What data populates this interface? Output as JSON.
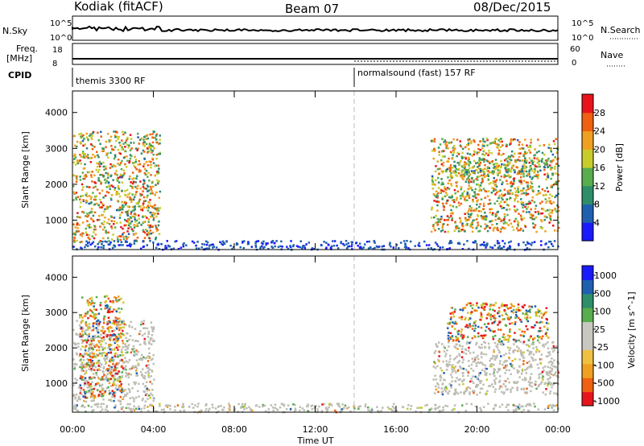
{
  "header": {
    "station": "Kodiak (fitACF)",
    "beam": "Beam 07",
    "date": "08/Dec/2015"
  },
  "top_panels": {
    "nsky_label": "N.Sky",
    "nsky_ticks": [
      "10^5",
      "10^0"
    ],
    "nsearch_label": "N.Search",
    "nsearch_ticks": [
      "10^5",
      "10^0"
    ],
    "freq_label_1": "Freq.",
    "freq_label_2": "[MHz]",
    "freq_ticks": [
      "18",
      "8"
    ],
    "nave_label": "Nave",
    "nave_ticks": [
      "60",
      "0"
    ],
    "cpid_label": "CPID",
    "cpid_segments": [
      {
        "name": "themis 3300 RF",
        "start_hour": 0,
        "end_hour": 14
      },
      {
        "name": "normalsound (fast) 157 RF",
        "start_hour": 14,
        "end_hour": 24
      }
    ]
  },
  "chart_data": [
    {
      "type": "heatmap",
      "quantity": "Power",
      "xlabel": "Time UT",
      "ylabel": "Slant Range [km]",
      "xlim": [
        0,
        24
      ],
      "ylim": [
        180,
        4600
      ],
      "xticks": [
        "00:00",
        "04:00",
        "08:00",
        "12:00",
        "16:00",
        "20:00",
        "00:00"
      ],
      "yticks": [
        1000,
        2000,
        3000,
        4000
      ],
      "colorbar": {
        "label": "Power [dB]",
        "range": [
          0,
          32
        ],
        "ticks": [
          "4",
          "8",
          "12",
          "16",
          "20",
          "24",
          "28"
        ]
      },
      "mode_change_hour": 14,
      "echo_regions": [
        {
          "name": "morning-flare",
          "t_start": 0.0,
          "t_end": 4.3,
          "range_min_km": 400,
          "range_max_km": 3500,
          "peak_power_db": 30
        },
        {
          "name": "ground-scatter-band",
          "t_start": 0.0,
          "t_end": 24.0,
          "range_min_km": 200,
          "range_max_km": 450,
          "peak_power_db": 8
        },
        {
          "name": "evening-arc-lower",
          "t_start": 17.7,
          "t_end": 24.0,
          "range_min_km": 700,
          "range_max_km": 3300,
          "peak_power_db": 30
        },
        {
          "name": "evening-arc-upper",
          "t_start": 18.5,
          "t_end": 23.5,
          "range_min_km": 2200,
          "range_max_km": 2700,
          "peak_power_db": 26
        }
      ]
    },
    {
      "type": "heatmap",
      "quantity": "Velocity",
      "xlabel": "Time UT",
      "ylabel": "Slant Range [km]",
      "xlim": [
        0,
        24
      ],
      "ylim": [
        180,
        4600
      ],
      "xticks": [
        "00:00",
        "04:00",
        "08:00",
        "12:00",
        "16:00",
        "20:00",
        "00:00"
      ],
      "yticks": [
        1000,
        2000,
        3000,
        4000
      ],
      "colorbar": {
        "label": "Velocity [m s^-1]",
        "ticks": [
          "1000",
          "500",
          "100",
          "25",
          "-25",
          "-100",
          "-500",
          "-1000"
        ]
      },
      "mode_change_hour": 14,
      "echo_regions": [
        {
          "name": "morning-ground-scatter",
          "t_start": 0.0,
          "t_end": 4.0,
          "range_min_km": 500,
          "range_max_km": 2800,
          "velocity_ms": 0
        },
        {
          "name": "morning-ionospheric",
          "t_start": 0.3,
          "t_end": 2.5,
          "range_min_km": 600,
          "range_max_km": 3500,
          "velocity_ms": -150
        },
        {
          "name": "near-range-band",
          "t_start": 0.0,
          "t_end": 24.0,
          "range_min_km": 200,
          "range_max_km": 450,
          "velocity_ms": -20
        },
        {
          "name": "evening-ground-scatter",
          "t_start": 17.8,
          "t_end": 24.0,
          "range_min_km": 700,
          "range_max_km": 2200,
          "velocity_ms": 0
        },
        {
          "name": "evening-upper-band",
          "t_start": 18.5,
          "t_end": 23.5,
          "range_min_km": 2200,
          "range_max_km": 3300,
          "velocity_ms": -100
        }
      ]
    }
  ],
  "colors": {
    "power_scale": [
      "#1a1aff",
      "#1f5fb0",
      "#2e8e6a",
      "#58ad4d",
      "#c8cc2a",
      "#f0a020",
      "#f06010",
      "#e8141c"
    ],
    "velocity_scale": [
      "#e8141c",
      "#f06010",
      "#f0a020",
      "#f0c040",
      "#c8c8c0",
      "#c8c8c0",
      "#58ad4d",
      "#2e8e6a",
      "#1f5fb0",
      "#1a1aff"
    ],
    "ground_scatter": "#bdbdb4",
    "axis": "#000000"
  }
}
